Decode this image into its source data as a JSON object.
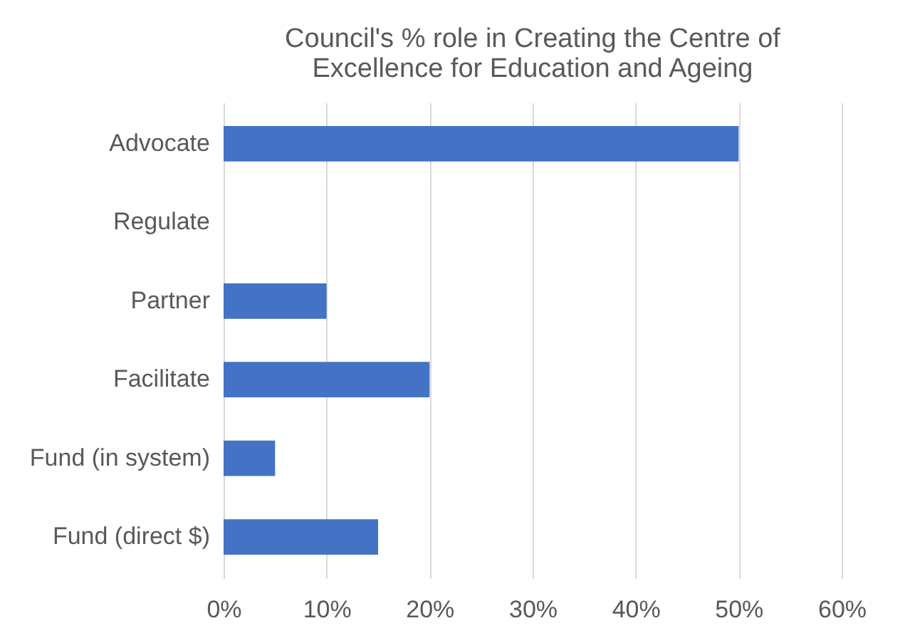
{
  "chart_data": {
    "type": "bar",
    "orientation": "horizontal",
    "title": "Council's % role in Creating the Centre of Excellence for Education and Ageing",
    "categories": [
      "Advocate",
      "Regulate",
      "Partner",
      "Facilitate",
      "Fund (in system)",
      "Fund (direct $)"
    ],
    "values": [
      50,
      0,
      10,
      20,
      5,
      15
    ],
    "color": "#4472c4",
    "xlim": [
      0,
      60
    ],
    "xticks": [
      {
        "value": 0,
        "label": "0%"
      },
      {
        "value": 10,
        "label": "10%"
      },
      {
        "value": 20,
        "label": "20%"
      },
      {
        "value": 30,
        "label": "30%"
      },
      {
        "value": 40,
        "label": "40%"
      },
      {
        "value": 50,
        "label": "50%"
      },
      {
        "value": 60,
        "label": "60%"
      }
    ],
    "grid": "x"
  }
}
